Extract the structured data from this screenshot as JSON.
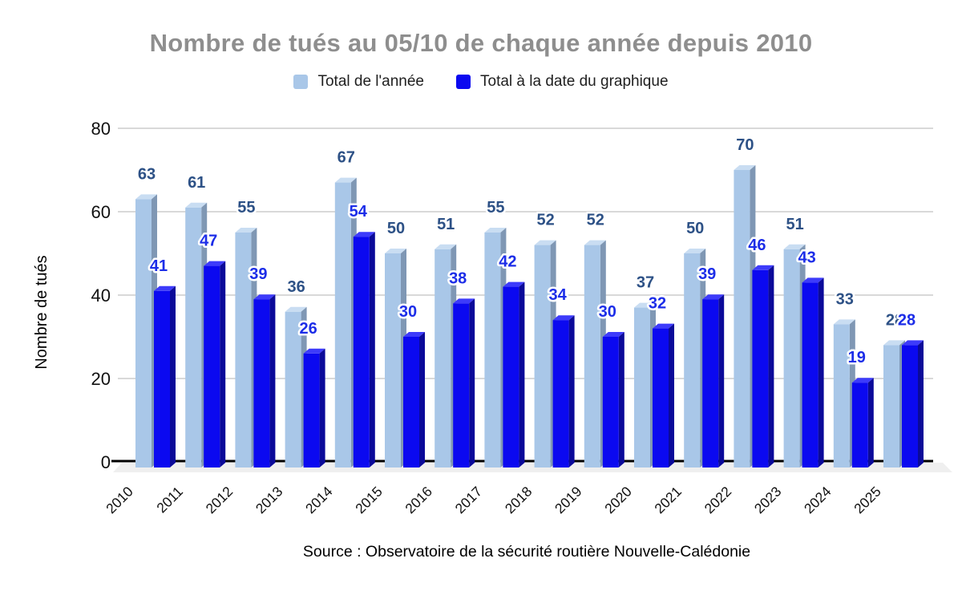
{
  "chart_data": {
    "type": "bar",
    "style": "3d-column",
    "title": "Nombre de tués au 05/10 de chaque année depuis 2010",
    "ylabel": "Nombre de tués",
    "xlabel": "",
    "source": "Source : Observatoire de la sécurité routière Nouvelle-Calédonie",
    "categories": [
      "2010",
      "2011",
      "2012",
      "2013",
      "2014",
      "2015",
      "2016",
      "2017",
      "2018",
      "2019",
      "2020",
      "2021",
      "2022",
      "2023",
      "2024",
      "2025"
    ],
    "series": [
      {
        "name": "Total de l'année",
        "values": [
          63,
          61,
          55,
          36,
          67,
          50,
          51,
          55,
          52,
          52,
          37,
          50,
          70,
          51,
          33,
          28
        ],
        "front_color": "#a9c7e8",
        "top_color": "#c9ddf2",
        "side_color": "#7f97b4",
        "label_color": "#2d5186"
      },
      {
        "name": "Total à la date du graphique",
        "values": [
          41,
          47,
          39,
          26,
          54,
          30,
          38,
          42,
          34,
          30,
          32,
          39,
          46,
          43,
          19,
          28
        ],
        "front_color": "#0b09f0",
        "top_color": "#3d3bfa",
        "side_color": "#0b0a99",
        "label_color": "#1c2de8"
      }
    ],
    "ylim": [
      0,
      80
    ],
    "yticks": [
      0,
      20,
      40,
      60,
      80
    ],
    "grid": true,
    "legend_position": "top",
    "data_labels": true
  },
  "colors": {
    "title": "#8e8e8e",
    "grid": "#d9d9d9",
    "axis": "#000000",
    "floor": "#efefef",
    "tick_text": "#111111"
  }
}
